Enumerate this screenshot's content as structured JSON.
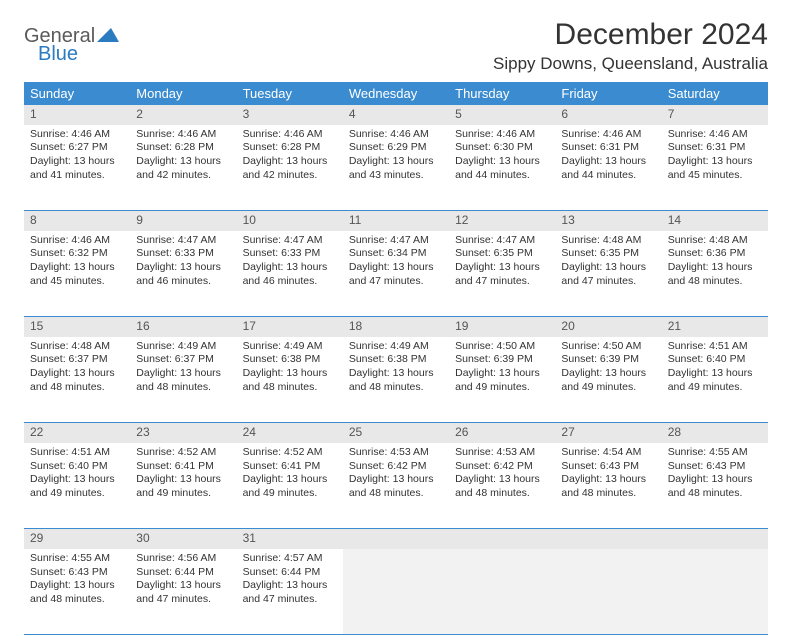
{
  "brand": {
    "name_a": "General",
    "name_b": "Blue"
  },
  "title": "December 2024",
  "location": "Sippy Downs, Queensland, Australia",
  "colors": {
    "header_bg": "#3a8bd0",
    "header_fg": "#ffffff",
    "daynum_bg": "#e8e8e8",
    "border": "#3a8bd0",
    "logo_blue": "#2a7bc0",
    "text": "#333333",
    "background": "#ffffff"
  },
  "typography": {
    "title_fontsize": 30,
    "location_fontsize": 17,
    "header_fontsize": 13,
    "daynum_fontsize": 12,
    "body_fontsize": 10.5
  },
  "weekdays": [
    "Sunday",
    "Monday",
    "Tuesday",
    "Wednesday",
    "Thursday",
    "Friday",
    "Saturday"
  ],
  "days": [
    {
      "n": 1,
      "sunrise": "4:46 AM",
      "sunset": "6:27 PM",
      "daylight": "13 hours and 41 minutes."
    },
    {
      "n": 2,
      "sunrise": "4:46 AM",
      "sunset": "6:28 PM",
      "daylight": "13 hours and 42 minutes."
    },
    {
      "n": 3,
      "sunrise": "4:46 AM",
      "sunset": "6:28 PM",
      "daylight": "13 hours and 42 minutes."
    },
    {
      "n": 4,
      "sunrise": "4:46 AM",
      "sunset": "6:29 PM",
      "daylight": "13 hours and 43 minutes."
    },
    {
      "n": 5,
      "sunrise": "4:46 AM",
      "sunset": "6:30 PM",
      "daylight": "13 hours and 44 minutes."
    },
    {
      "n": 6,
      "sunrise": "4:46 AM",
      "sunset": "6:31 PM",
      "daylight": "13 hours and 44 minutes."
    },
    {
      "n": 7,
      "sunrise": "4:46 AM",
      "sunset": "6:31 PM",
      "daylight": "13 hours and 45 minutes."
    },
    {
      "n": 8,
      "sunrise": "4:46 AM",
      "sunset": "6:32 PM",
      "daylight": "13 hours and 45 minutes."
    },
    {
      "n": 9,
      "sunrise": "4:47 AM",
      "sunset": "6:33 PM",
      "daylight": "13 hours and 46 minutes."
    },
    {
      "n": 10,
      "sunrise": "4:47 AM",
      "sunset": "6:33 PM",
      "daylight": "13 hours and 46 minutes."
    },
    {
      "n": 11,
      "sunrise": "4:47 AM",
      "sunset": "6:34 PM",
      "daylight": "13 hours and 47 minutes."
    },
    {
      "n": 12,
      "sunrise": "4:47 AM",
      "sunset": "6:35 PM",
      "daylight": "13 hours and 47 minutes."
    },
    {
      "n": 13,
      "sunrise": "4:48 AM",
      "sunset": "6:35 PM",
      "daylight": "13 hours and 47 minutes."
    },
    {
      "n": 14,
      "sunrise": "4:48 AM",
      "sunset": "6:36 PM",
      "daylight": "13 hours and 48 minutes."
    },
    {
      "n": 15,
      "sunrise": "4:48 AM",
      "sunset": "6:37 PM",
      "daylight": "13 hours and 48 minutes."
    },
    {
      "n": 16,
      "sunrise": "4:49 AM",
      "sunset": "6:37 PM",
      "daylight": "13 hours and 48 minutes."
    },
    {
      "n": 17,
      "sunrise": "4:49 AM",
      "sunset": "6:38 PM",
      "daylight": "13 hours and 48 minutes."
    },
    {
      "n": 18,
      "sunrise": "4:49 AM",
      "sunset": "6:38 PM",
      "daylight": "13 hours and 48 minutes."
    },
    {
      "n": 19,
      "sunrise": "4:50 AM",
      "sunset": "6:39 PM",
      "daylight": "13 hours and 49 minutes."
    },
    {
      "n": 20,
      "sunrise": "4:50 AM",
      "sunset": "6:39 PM",
      "daylight": "13 hours and 49 minutes."
    },
    {
      "n": 21,
      "sunrise": "4:51 AM",
      "sunset": "6:40 PM",
      "daylight": "13 hours and 49 minutes."
    },
    {
      "n": 22,
      "sunrise": "4:51 AM",
      "sunset": "6:40 PM",
      "daylight": "13 hours and 49 minutes."
    },
    {
      "n": 23,
      "sunrise": "4:52 AM",
      "sunset": "6:41 PM",
      "daylight": "13 hours and 49 minutes."
    },
    {
      "n": 24,
      "sunrise": "4:52 AM",
      "sunset": "6:41 PM",
      "daylight": "13 hours and 49 minutes."
    },
    {
      "n": 25,
      "sunrise": "4:53 AM",
      "sunset": "6:42 PM",
      "daylight": "13 hours and 48 minutes."
    },
    {
      "n": 26,
      "sunrise": "4:53 AM",
      "sunset": "6:42 PM",
      "daylight": "13 hours and 48 minutes."
    },
    {
      "n": 27,
      "sunrise": "4:54 AM",
      "sunset": "6:43 PM",
      "daylight": "13 hours and 48 minutes."
    },
    {
      "n": 28,
      "sunrise": "4:55 AM",
      "sunset": "6:43 PM",
      "daylight": "13 hours and 48 minutes."
    },
    {
      "n": 29,
      "sunrise": "4:55 AM",
      "sunset": "6:43 PM",
      "daylight": "13 hours and 48 minutes."
    },
    {
      "n": 30,
      "sunrise": "4:56 AM",
      "sunset": "6:44 PM",
      "daylight": "13 hours and 47 minutes."
    },
    {
      "n": 31,
      "sunrise": "4:57 AM",
      "sunset": "6:44 PM",
      "daylight": "13 hours and 47 minutes."
    }
  ],
  "labels": {
    "sunrise": "Sunrise:",
    "sunset": "Sunset:",
    "daylight": "Daylight:"
  },
  "layout": {
    "first_weekday_offset": 0,
    "trailing_empty": 4
  }
}
